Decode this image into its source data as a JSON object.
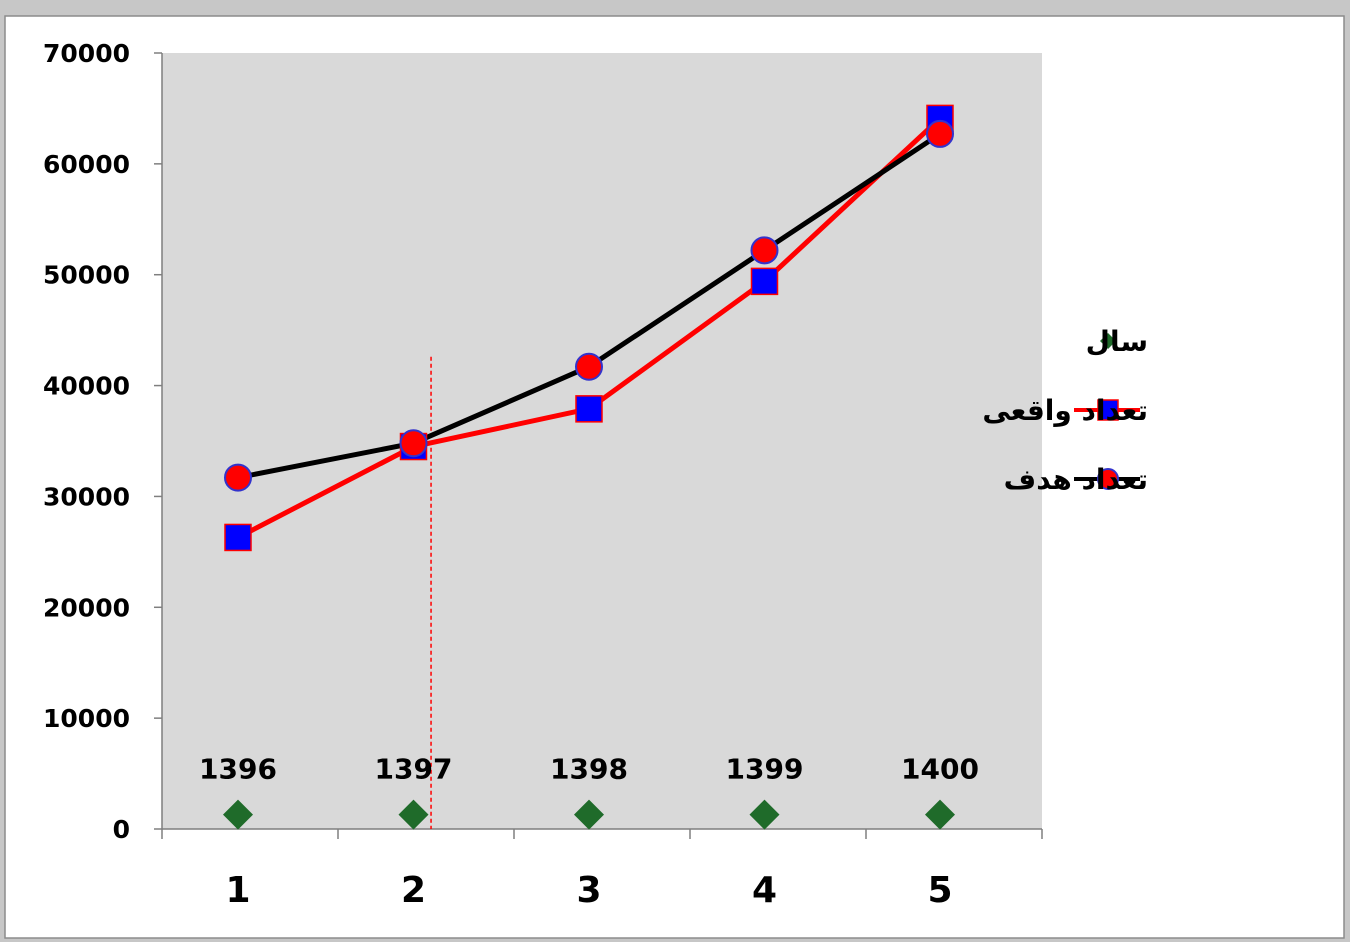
{
  "chart_data": {
    "type": "line",
    "categories": [
      "1",
      "2",
      "3",
      "4",
      "5"
    ],
    "x": [
      1,
      2,
      3,
      4,
      5
    ],
    "ylim": [
      0,
      70000
    ],
    "y_ticks": [
      "0",
      "10000",
      "20000",
      "30000",
      "40000",
      "50000",
      "60000",
      "70000"
    ],
    "grid": false,
    "plot_background": "#d9d9d9",
    "legend_position": "right",
    "series": [
      {
        "name": "سال",
        "type": "scatter",
        "marker": "diamond",
        "color": "#1f6b2a",
        "values": [
          1396,
          1397,
          1398,
          1399,
          1400
        ],
        "data_labels": [
          "1396",
          "1397",
          "1398",
          "1399",
          "1400"
        ]
      },
      {
        "name": "تعداد واقعی",
        "type": "line",
        "marker": "square",
        "line_color": "#ff0000",
        "marker_color": "#0000ff",
        "values": [
          26300,
          34500,
          37900,
          49400,
          64100
        ]
      },
      {
        "name": "تعداد هدف",
        "type": "line",
        "marker": "circle",
        "line_color": "#000000",
        "marker_color": "#ff0000",
        "values": [
          31700,
          34800,
          41700,
          52200,
          62700
        ]
      }
    ],
    "annotation": {
      "type": "vertical-dashed-line",
      "x": 2.1,
      "y_top": 42600,
      "color": "#ff0000"
    }
  }
}
